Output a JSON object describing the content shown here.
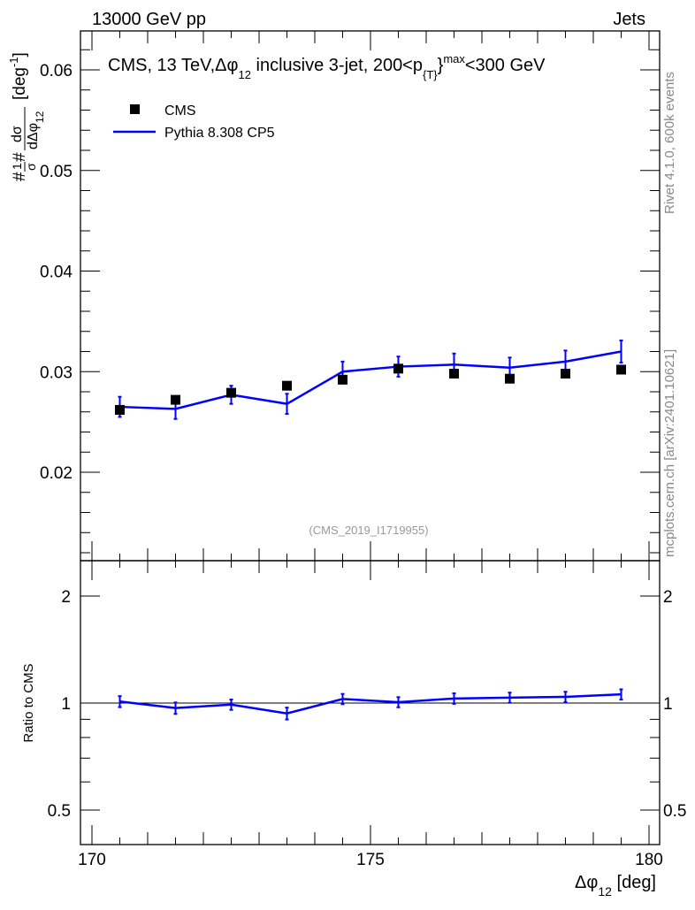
{
  "header": {
    "left": "13000 GeV pp",
    "right": "Jets"
  },
  "side_labels": {
    "top": "Rivet 4.1.0,  600k events",
    "bottom": "mcplots.cern.ch [arXiv:2401.10621]"
  },
  "analysis_id": "(CMS_2019_I1719955)",
  "chart_data": [
    {
      "type": "line",
      "title": "CMS, 13 TeV,Δφ_12 inclusive 3-jet, 200<p_{T}^max<300 GeV",
      "title_parts": {
        "a": "CMS, 13 TeV,Δφ",
        "sub1": "12",
        "b": " inclusive 3-jet, 200<p",
        "sub2": "{T}",
        "b2": "}",
        "sup": "max",
        "c": "<300 GeV"
      },
      "ylabel": "#1/σ # dσ/dΔφ_12 [deg^-1]",
      "ylabel_parts": {
        "num": "dσ",
        "den": "dΔφ",
        "den_sub": "12",
        "pre": "#",
        "frac": "1",
        "sigma": "σ",
        "hash": "#",
        "unit": "[deg",
        "unit_sup": "-1",
        "unit_end": "]"
      },
      "ylim": [
        0.0112,
        0.0639
      ],
      "xlim": [
        169.8,
        180.2
      ],
      "yticks": [
        0.02,
        0.03,
        0.04,
        0.05,
        0.06
      ],
      "ytick_labels": [
        "0.02",
        "0.03",
        "0.04",
        "0.05",
        "0.06"
      ],
      "legend": {
        "placement": "top-left",
        "entries": [
          "CMS",
          "Pythia 8.308 CP5"
        ]
      },
      "x": [
        170.5,
        171.5,
        172.5,
        173.5,
        174.5,
        175.5,
        176.5,
        177.5,
        178.5,
        179.5
      ],
      "series": [
        {
          "name": "CMS",
          "color": "#000000",
          "marker": "square",
          "values": [
            0.0262,
            0.0272,
            0.0279,
            0.0286,
            0.0292,
            0.0303,
            0.0298,
            0.0293,
            0.0298,
            0.0302
          ]
        },
        {
          "name": "Pythia 8.308 CP5",
          "color": "#0000ff",
          "values": [
            0.0265,
            0.0263,
            0.0277,
            0.0268,
            0.03,
            0.0305,
            0.0307,
            0.0304,
            0.031,
            0.032
          ],
          "errors": [
            0.001,
            0.001,
            0.0009,
            0.001,
            0.001,
            0.001,
            0.0011,
            0.001,
            0.0011,
            0.0011
          ]
        }
      ]
    },
    {
      "type": "line",
      "ylabel": "Ratio to CMS",
      "xlabel": "Δφ_12 [deg]",
      "xlabel_parts": {
        "a": "Δφ",
        "sub": "12",
        "b": " [deg]"
      },
      "yscale": "log",
      "ylim": [
        0.4,
        2.52
      ],
      "yticks": [
        0.5,
        1,
        2
      ],
      "ytick_labels": [
        "0.5",
        "1",
        "2"
      ],
      "xticks": [
        170,
        175,
        180
      ],
      "xtick_labels": [
        "170",
        "175",
        "180"
      ],
      "x": [
        170.5,
        171.5,
        172.5,
        173.5,
        174.5,
        175.5,
        176.5,
        177.5,
        178.5,
        179.5
      ],
      "series": [
        {
          "name": "Pythia 8.308 CP5 / CMS",
          "color": "#0000ff",
          "values": [
            1.01,
            0.968,
            0.99,
            0.935,
            1.027,
            1.006,
            1.03,
            1.036,
            1.041,
            1.058
          ],
          "errors": [
            0.036,
            0.036,
            0.033,
            0.036,
            0.034,
            0.033,
            0.035,
            0.034,
            0.035,
            0.035
          ]
        }
      ]
    }
  ]
}
